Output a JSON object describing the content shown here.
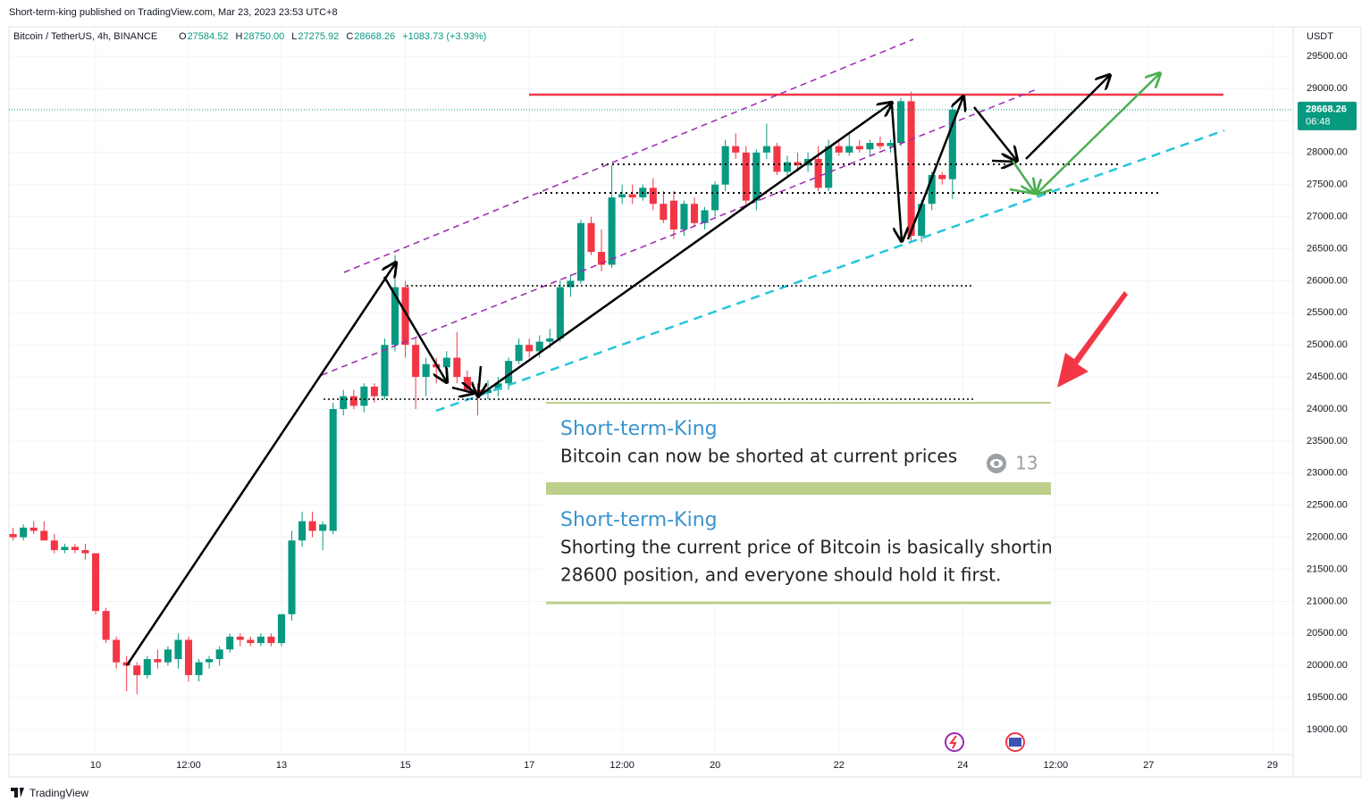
{
  "header": "Short-term-king published on TradingView.com, Mar 23, 2023 23:53 UTC+8",
  "footer": "TradingView",
  "chart_data": {
    "type": "candlestick",
    "title": "Bitcoin / TetherUS, 4h, BINANCE",
    "legend": [
      {
        "label": "O",
        "value": "27584.52"
      },
      {
        "label": "H",
        "value": "28750.00"
      },
      {
        "label": "L",
        "value": "27275.92"
      },
      {
        "label": "C",
        "value": "28668.26"
      }
    ],
    "change": "+1083.73 (+3.93%)",
    "y_unit": "USDT",
    "countdown": "06:48",
    "up_color": "#089981",
    "down_color": "#f23645",
    "x": [
      -32,
      -28,
      -24,
      -20,
      -16,
      -12,
      -8,
      -4,
      0,
      4,
      8,
      12,
      16,
      20,
      24,
      28,
      32,
      36,
      40,
      44,
      48,
      52,
      56,
      60,
      64,
      68,
      72,
      76,
      80,
      84,
      88,
      92,
      96,
      100,
      104,
      108,
      112,
      116,
      120,
      124,
      128,
      132,
      136,
      140,
      144,
      148,
      152,
      156,
      160,
      164,
      168,
      172,
      176,
      180,
      184,
      188,
      192,
      196,
      200,
      204,
      208,
      212,
      216,
      220,
      224,
      228,
      232,
      236,
      240,
      244,
      248,
      252,
      256,
      260,
      264,
      268,
      272,
      276,
      280,
      284,
      288,
      292,
      296,
      300,
      304,
      308,
      312,
      316,
      320,
      324,
      328,
      332
    ],
    "open": [
      22050,
      22000,
      22150,
      22100,
      21950,
      21800,
      21850,
      21800,
      21750,
      20850,
      20400,
      20050,
      20000,
      19850,
      20100,
      20050,
      20100,
      20400,
      19850,
      20050,
      20100,
      20250,
      20450,
      20400,
      20350,
      20450,
      20350,
      20800,
      21950,
      22250,
      22100,
      22100,
      24000,
      24200,
      24050,
      24350,
      24200,
      25000,
      25900,
      25000,
      24500,
      24700,
      24650,
      24800,
      24500,
      24300,
      24250,
      24300,
      24400,
      24750,
      25000,
      24900,
      25050,
      25100,
      25900,
      26000,
      26900,
      26450,
      26250,
      27300,
      27350,
      27300,
      27450,
      27200,
      27250,
      26800,
      27200,
      26900,
      27100,
      27500,
      28100,
      28000,
      27250,
      28000,
      28100,
      27700,
      27850,
      27800,
      27900,
      27450,
      28100,
      28000,
      28100,
      28050,
      28150,
      28100,
      28150,
      28800,
      26700,
      27200,
      27650,
      27584.52
    ],
    "high": [
      22150,
      22200,
      22250,
      22250,
      22050,
      21900,
      21900,
      21900,
      21750,
      20900,
      20450,
      20150,
      20050,
      20150,
      20250,
      20300,
      20500,
      20450,
      20100,
      20150,
      20300,
      20500,
      20500,
      20450,
      20500,
      20500,
      20800,
      22100,
      22400,
      22400,
      22250,
      24100,
      24300,
      24300,
      24400,
      24400,
      25100,
      26400,
      26000,
      25100,
      24800,
      24800,
      24900,
      25200,
      24600,
      24400,
      24450,
      24500,
      24800,
      25100,
      25100,
      25150,
      25250,
      26000,
      26100,
      26950,
      27000,
      26800,
      27800,
      27500,
      27500,
      27500,
      27600,
      27400,
      27400,
      27250,
      27300,
      27150,
      27550,
      28200,
      28300,
      28100,
      28050,
      28450,
      28150,
      27950,
      28000,
      28000,
      28100,
      28200,
      28200,
      28300,
      28200,
      28200,
      28250,
      28200,
      28850,
      28950,
      27250,
      27700,
      27700,
      28750
    ],
    "low": [
      21950,
      21950,
      22050,
      21950,
      21750,
      21750,
      21750,
      21650,
      20800,
      20350,
      19950,
      19600,
      19550,
      19800,
      19950,
      20000,
      19950,
      19750,
      19750,
      19950,
      20000,
      20200,
      20300,
      20300,
      20300,
      20300,
      20300,
      20700,
      21850,
      22000,
      21800,
      22050,
      23900,
      24000,
      23950,
      24100,
      24150,
      24900,
      24800,
      24000,
      24200,
      24400,
      24400,
      24400,
      24250,
      23900,
      24150,
      24200,
      24300,
      24700,
      24800,
      24800,
      24950,
      25050,
      25750,
      25950,
      26400,
      26150,
      26200,
      27200,
      27200,
      27250,
      27100,
      26900,
      26650,
      26700,
      26850,
      26800,
      27000,
      27400,
      27900,
      27150,
      27100,
      27900,
      27650,
      27600,
      27700,
      27700,
      27400,
      27400,
      27950,
      27950,
      28000,
      27950,
      28050,
      28000,
      28100,
      26600,
      26600,
      27100,
      27500,
      27275.92
    ],
    "close": [
      22000,
      22150,
      22100,
      21950,
      21800,
      21850,
      21800,
      21750,
      20850,
      20400,
      20050,
      20000,
      19850,
      20100,
      20050,
      20250,
      20400,
      19850,
      20050,
      20100,
      20250,
      20450,
      20400,
      20350,
      20450,
      20350,
      20800,
      21950,
      22250,
      22100,
      22200,
      24000,
      24200,
      24050,
      24350,
      24200,
      25000,
      25900,
      25000,
      24500,
      24700,
      24650,
      24800,
      24500,
      24300,
      24250,
      24300,
      24400,
      24750,
      25000,
      24900,
      25050,
      25100,
      25900,
      26000,
      26900,
      26450,
      26250,
      27300,
      27350,
      27300,
      27450,
      27200,
      26950,
      26800,
      27200,
      26900,
      27100,
      27500,
      28100,
      28000,
      27250,
      28000,
      28100,
      27700,
      27850,
      27800,
      27900,
      27450,
      28100,
      28000,
      28100,
      28050,
      28150,
      28100,
      28150,
      28800,
      26700,
      27200,
      27650,
      27584.52,
      28668.26
    ],
    "xlim": [
      -33.6,
      464
    ],
    "ylim": [
      18610,
      29961
    ],
    "xticks": [
      {
        "value": 0,
        "label": "10"
      },
      {
        "value": 36,
        "label": "12:00"
      },
      {
        "value": 72,
        "label": "13"
      },
      {
        "value": 120,
        "label": "15"
      },
      {
        "value": 168,
        "label": "17"
      },
      {
        "value": 204,
        "label": "12:00"
      },
      {
        "value": 240,
        "label": "20"
      },
      {
        "value": 288,
        "label": "22"
      },
      {
        "value": 336,
        "label": "24"
      },
      {
        "value": 372,
        "label": "12:00"
      },
      {
        "value": 408,
        "label": "27"
      },
      {
        "value": 456,
        "label": "29"
      }
    ],
    "yticks": [
      {
        "value": 19000,
        "label": "19000.00"
      },
      {
        "value": 19500,
        "label": "19500.00"
      },
      {
        "value": 20000,
        "label": "20000.00"
      },
      {
        "value": 20500,
        "label": "20500.00"
      },
      {
        "value": 21000,
        "label": "21000.00"
      },
      {
        "value": 21500,
        "label": "21500.00"
      },
      {
        "value": 22000,
        "label": "22000.00"
      },
      {
        "value": 22500,
        "label": "22500.00"
      },
      {
        "value": 23000,
        "label": "23000.00"
      },
      {
        "value": 23500,
        "label": "23500.00"
      },
      {
        "value": 24000,
        "label": "24000.00"
      },
      {
        "value": 24500,
        "label": "24500.00"
      },
      {
        "value": 25000,
        "label": "25000.00"
      },
      {
        "value": 25500,
        "label": "25500.00"
      },
      {
        "value": 26000,
        "label": "26000.00"
      },
      {
        "value": 26500,
        "label": "26500.00"
      },
      {
        "value": 27000,
        "label": "27000.00"
      },
      {
        "value": 27500,
        "label": "27500.00"
      },
      {
        "value": 28000,
        "label": "28000.00"
      },
      {
        "value": 28500,
        "label": "28500.00"
      },
      {
        "value": 29000,
        "label": "29000.00"
      },
      {
        "value": 29500,
        "label": "29500.00"
      }
    ],
    "grid": true
  },
  "overlay": {
    "messages": [
      {
        "author": "Short-term-King",
        "text": "Bitcoin can now be shorted at current prices",
        "views": 13
      },
      {
        "author": "Short-term-King",
        "lines": [
          "Shorting the current price of Bitcoin is basically shortin",
          "28600 position, and everyone should hold it first."
        ]
      }
    ]
  }
}
